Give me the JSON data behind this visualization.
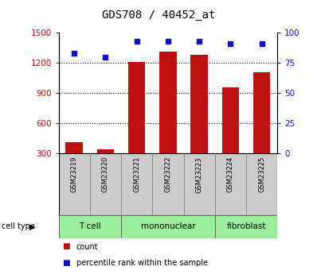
{
  "title": "GDS708 / 40452_at",
  "samples": [
    "GSM23219",
    "GSM23220",
    "GSM23221",
    "GSM23222",
    "GSM23223",
    "GSM23224",
    "GSM23225"
  ],
  "counts": [
    415,
    345,
    1210,
    1310,
    1280,
    960,
    1110
  ],
  "percentiles": [
    83,
    80,
    93,
    93,
    93,
    91,
    91
  ],
  "cell_types": [
    {
      "label": "T cell",
      "start": 0,
      "end": 2
    },
    {
      "label": "mononuclear",
      "start": 2,
      "end": 5
    },
    {
      "label": "fibroblast",
      "start": 5,
      "end": 7
    }
  ],
  "ylim_left": [
    300,
    1500
  ],
  "ylim_right": [
    0,
    100
  ],
  "yticks_left": [
    300,
    600,
    900,
    1200,
    1500
  ],
  "yticks_right": [
    0,
    25,
    50,
    75,
    100
  ],
  "bar_color": "#BB1111",
  "dot_color": "#1111CC",
  "cell_type_bg": "#99ee99",
  "sample_bg": "#cccccc",
  "legend_items": [
    "count",
    "percentile rank within the sample"
  ]
}
